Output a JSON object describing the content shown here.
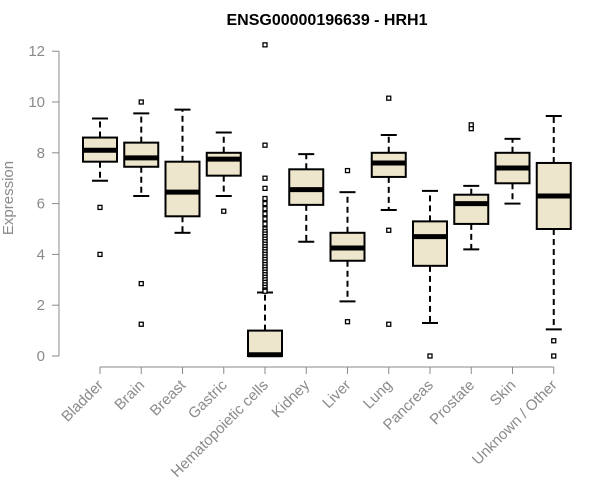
{
  "chart_data": {
    "type": "boxplot",
    "title": "ENSG00000196639 - HRH1",
    "xlabel": "",
    "ylabel": "Expression",
    "ylim": [
      0,
      12
    ],
    "yticks": [
      "0",
      "2",
      "4",
      "6",
      "8",
      "10",
      "12"
    ],
    "grid": false,
    "box_fill": "#ede6cc",
    "axis_color": "#8a8a8a",
    "categories": [
      "Bladder",
      "Brain",
      "Breast",
      "Gastric",
      "Hematopoietic cells",
      "Kidney",
      "Liver",
      "Lung",
      "Pancreas",
      "Prostate",
      "Skin",
      "Unknown / Other"
    ],
    "boxes": [
      {
        "q1": 7.65,
        "median": 8.1,
        "q3": 8.6,
        "whisker_low": 6.9,
        "whisker_high": 9.35,
        "outliers": [
          5.85,
          4.0
        ]
      },
      {
        "q1": 7.45,
        "median": 7.8,
        "q3": 8.4,
        "whisker_low": 6.3,
        "whisker_high": 9.55,
        "outliers": [
          10.0,
          2.85,
          1.25
        ]
      },
      {
        "q1": 5.5,
        "median": 6.45,
        "q3": 7.65,
        "whisker_low": 4.85,
        "whisker_high": 9.7,
        "outliers": []
      },
      {
        "q1": 7.1,
        "median": 7.75,
        "q3": 8.0,
        "whisker_low": 6.3,
        "whisker_high": 8.8,
        "outliers": [
          5.7
        ]
      },
      {
        "q1": 0.0,
        "median": 0.05,
        "q3": 1.0,
        "whisker_low": 0.0,
        "whisker_high": 2.5,
        "outliers": [
          12.25,
          8.3,
          7.0,
          6.6,
          6.2,
          6.0,
          5.8,
          5.6,
          5.4,
          5.2,
          5.0,
          4.9,
          4.8,
          4.7,
          4.6,
          4.5,
          4.4,
          4.3,
          4.2,
          4.1,
          4.0,
          3.9,
          3.8,
          3.7,
          3.6,
          3.5,
          3.4,
          3.3,
          3.2,
          3.1,
          3.0,
          2.9,
          2.8,
          2.7,
          2.6,
          2.55
        ]
      },
      {
        "q1": 5.95,
        "median": 6.55,
        "q3": 7.35,
        "whisker_low": 4.5,
        "whisker_high": 7.95,
        "outliers": []
      },
      {
        "q1": 3.75,
        "median": 4.25,
        "q3": 4.85,
        "whisker_low": 2.15,
        "whisker_high": 6.45,
        "outliers": [
          7.3,
          1.35
        ]
      },
      {
        "q1": 7.05,
        "median": 7.6,
        "q3": 8.0,
        "whisker_low": 5.75,
        "whisker_high": 8.7,
        "outliers": [
          10.15,
          4.95,
          1.25
        ]
      },
      {
        "q1": 3.55,
        "median": 4.7,
        "q3": 5.3,
        "whisker_low": 1.3,
        "whisker_high": 6.5,
        "outliers": [
          0.0
        ]
      },
      {
        "q1": 5.2,
        "median": 6.0,
        "q3": 6.35,
        "whisker_low": 4.2,
        "whisker_high": 6.7,
        "outliers": [
          9.1,
          8.95
        ]
      },
      {
        "q1": 6.8,
        "median": 7.4,
        "q3": 8.0,
        "whisker_low": 6.0,
        "whisker_high": 8.55,
        "outliers": []
      },
      {
        "q1": 5.0,
        "median": 6.3,
        "q3": 7.6,
        "whisker_low": 1.05,
        "whisker_high": 9.45,
        "outliers": [
          0.6,
          0.0
        ]
      }
    ]
  }
}
